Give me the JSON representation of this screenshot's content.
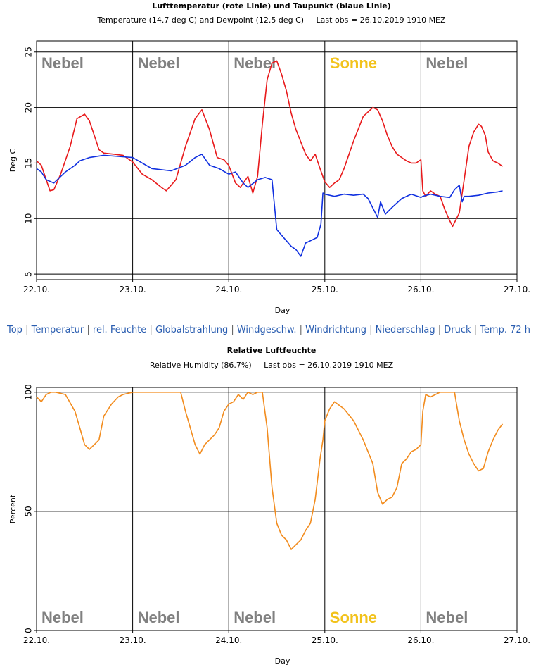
{
  "chart_data": [
    {
      "type": "line",
      "title": "Lufttemperatur (rote Linie) und Taupunkt (blaue Linie)",
      "subtitle": "Temperature (14.7 deg C) and Dewpoint (12.5 deg C)     Last obs = 26.10.2019 1910 MEZ",
      "xlabel": "Day",
      "ylabel": "Deg C",
      "xlim": [
        0,
        5
      ],
      "ylim": [
        4.5,
        26
      ],
      "xticks": [
        "22.10.",
        "23.10.",
        "24.10.",
        "25.10.",
        "26.10.",
        "27.10."
      ],
      "yticks": [
        5,
        10,
        15,
        20,
        25
      ],
      "grid": true,
      "day_labels": [
        {
          "day": 0,
          "text": "Nebel",
          "color": "#808080"
        },
        {
          "day": 1,
          "text": "Nebel",
          "color": "#808080"
        },
        {
          "day": 2,
          "text": "Nebel",
          "color": "#808080"
        },
        {
          "day": 3,
          "text": "Sonne",
          "color": "#f2c21a"
        },
        {
          "day": 4,
          "text": "Nebel",
          "color": "#808080"
        }
      ],
      "series": [
        {
          "color": "#e8191b",
          "x": [
            0,
            0.05,
            0.1,
            0.14,
            0.18,
            0.25,
            0.35,
            0.42,
            0.5,
            0.55,
            0.6,
            0.65,
            0.7,
            0.8,
            0.9,
            1.0,
            1.1,
            1.2,
            1.3,
            1.35,
            1.45,
            1.55,
            1.65,
            1.72,
            1.8,
            1.88,
            1.95,
            2.0,
            2.07,
            2.12,
            2.2,
            2.25,
            2.3,
            2.35,
            2.4,
            2.45,
            2.5,
            2.55,
            2.6,
            2.65,
            2.7,
            2.8,
            2.85,
            2.9,
            2.95,
            3.0,
            3.05,
            3.1,
            3.15,
            3.2,
            3.3,
            3.4,
            3.5,
            3.55,
            3.6,
            3.65,
            3.7,
            3.75,
            3.8,
            3.85,
            3.9,
            3.95,
            4.0,
            4.02,
            4.05,
            4.1,
            4.15,
            4.2,
            4.25,
            4.3,
            4.33,
            4.4,
            4.45,
            4.5,
            4.55,
            4.6,
            4.63,
            4.67,
            4.7,
            4.75,
            4.8,
            4.85
          ],
          "values": [
            15.2,
            14.8,
            13.5,
            12.5,
            12.6,
            14.0,
            16.5,
            19.0,
            19.4,
            18.8,
            17.5,
            16.2,
            15.9,
            15.8,
            15.7,
            15.1,
            14.0,
            13.5,
            12.8,
            12.5,
            13.5,
            16.5,
            19.0,
            19.8,
            18.0,
            15.5,
            15.3,
            14.8,
            13.2,
            12.8,
            13.8,
            12.3,
            13.8,
            18.5,
            22.5,
            24.0,
            24.2,
            23.0,
            21.5,
            19.5,
            18.0,
            15.8,
            15.2,
            15.8,
            14.5,
            13.3,
            12.8,
            13.2,
            13.5,
            14.5,
            17.0,
            19.2,
            20.0,
            19.8,
            18.8,
            17.5,
            16.5,
            15.8,
            15.5,
            15.2,
            15.0,
            15.0,
            15.3,
            12.5,
            12.0,
            12.5,
            12.2,
            12.0,
            10.8,
            9.8,
            9.3,
            10.5,
            13.5,
            16.5,
            17.8,
            18.5,
            18.3,
            17.5,
            16.0,
            15.2,
            15.0,
            14.7
          ]
        },
        {
          "color": "#1030e0",
          "x": [
            0,
            0.05,
            0.1,
            0.18,
            0.3,
            0.4,
            0.45,
            0.55,
            0.7,
            0.85,
            1.0,
            1.2,
            1.4,
            1.55,
            1.65,
            1.72,
            1.8,
            1.9,
            2.0,
            2.07,
            2.15,
            2.2,
            2.3,
            2.38,
            2.45,
            2.5,
            2.55,
            2.6,
            2.65,
            2.7,
            2.75,
            2.8,
            2.85,
            2.92,
            2.96,
            2.98,
            3.0,
            3.1,
            3.2,
            3.3,
            3.4,
            3.45,
            3.55,
            3.58,
            3.63,
            3.7,
            3.8,
            3.9,
            4.0,
            4.02,
            4.1,
            4.2,
            4.3,
            4.35,
            4.4,
            4.43,
            4.45,
            4.5,
            4.6,
            4.7,
            4.8,
            4.85
          ],
          "values": [
            14.5,
            14.2,
            13.5,
            13.2,
            14.2,
            14.8,
            15.2,
            15.5,
            15.7,
            15.6,
            15.5,
            14.5,
            14.3,
            14.8,
            15.5,
            15.8,
            14.8,
            14.5,
            14.0,
            14.2,
            13.2,
            12.8,
            13.5,
            13.7,
            13.5,
            9.0,
            8.5,
            8.0,
            7.5,
            7.2,
            6.6,
            7.8,
            8.0,
            8.3,
            9.5,
            12.3,
            12.2,
            12.0,
            12.2,
            12.1,
            12.2,
            11.8,
            10.1,
            11.5,
            10.4,
            11.0,
            11.8,
            12.2,
            11.9,
            12.0,
            12.2,
            12.0,
            11.9,
            12.6,
            13.0,
            11.5,
            12.0,
            12.0,
            12.1,
            12.3,
            12.4,
            12.5
          ]
        }
      ]
    },
    {
      "type": "line",
      "title": "Relative Luftfeuchte",
      "subtitle": "Relative Humidity (86.7%)     Last obs = 26.10.2019 1910 MEZ",
      "xlabel": "Day",
      "ylabel": "Percent",
      "xlim": [
        0,
        5
      ],
      "ylim": [
        0,
        102
      ],
      "xticks": [
        "22.10.",
        "23.10.",
        "24.10.",
        "25.10.",
        "26.10.",
        "27.10."
      ],
      "yticks": [
        0,
        50,
        100
      ],
      "grid": true,
      "day_labels": [
        {
          "day": 0,
          "text": "Nebel",
          "color": "#808080"
        },
        {
          "day": 1,
          "text": "Nebel",
          "color": "#808080"
        },
        {
          "day": 2,
          "text": "Nebel",
          "color": "#808080"
        },
        {
          "day": 3,
          "text": "Sonne",
          "color": "#f2c21a"
        },
        {
          "day": 4,
          "text": "Nebel",
          "color": "#808080"
        }
      ],
      "series": [
        {
          "color": "#f28c1e",
          "x": [
            0,
            0.05,
            0.1,
            0.15,
            0.2,
            0.3,
            0.4,
            0.45,
            0.5,
            0.55,
            0.6,
            0.65,
            0.7,
            0.78,
            0.85,
            0.9,
            1.0,
            1.2,
            1.4,
            1.5,
            1.55,
            1.6,
            1.65,
            1.7,
            1.75,
            1.85,
            1.9,
            1.95,
            2.0,
            2.05,
            2.1,
            2.15,
            2.2,
            2.25,
            2.3,
            2.35,
            2.4,
            2.45,
            2.5,
            2.55,
            2.6,
            2.65,
            2.7,
            2.75,
            2.8,
            2.85,
            2.9,
            2.95,
            2.98,
            3.0,
            3.05,
            3.1,
            3.2,
            3.3,
            3.4,
            3.5,
            3.55,
            3.6,
            3.65,
            3.7,
            3.75,
            3.8,
            3.85,
            3.9,
            3.95,
            4.0,
            4.02,
            4.05,
            4.1,
            4.2,
            4.3,
            4.35,
            4.4,
            4.45,
            4.5,
            4.55,
            4.6,
            4.65,
            4.7,
            4.75,
            4.8,
            4.85
          ],
          "values": [
            98,
            96,
            99,
            100,
            100,
            99,
            92,
            85,
            78,
            76,
            78,
            80,
            90,
            95,
            98,
            99,
            100,
            100,
            100,
            100,
            92,
            85,
            78,
            74,
            78,
            82,
            85,
            92,
            95,
            96,
            99,
            97,
            100,
            99,
            100,
            100,
            85,
            60,
            45,
            40,
            38,
            34,
            36,
            38,
            42,
            45,
            55,
            72,
            80,
            88,
            93,
            96,
            93,
            88,
            80,
            70,
            58,
            53,
            55,
            56,
            60,
            70,
            72,
            75,
            76,
            78,
            92,
            99,
            98,
            100,
            100,
            100,
            88,
            80,
            74,
            70,
            67,
            68,
            75,
            80,
            84,
            86.7
          ]
        }
      ]
    }
  ],
  "nav": {
    "items": [
      "Top",
      "Temperatur",
      "rel. Feuchte",
      "Globalstrahlung",
      "Windgeschw.",
      "Windrichtung",
      "Niederschlag",
      "Druck",
      "Temp. 72 h"
    ],
    "separator": "|"
  }
}
